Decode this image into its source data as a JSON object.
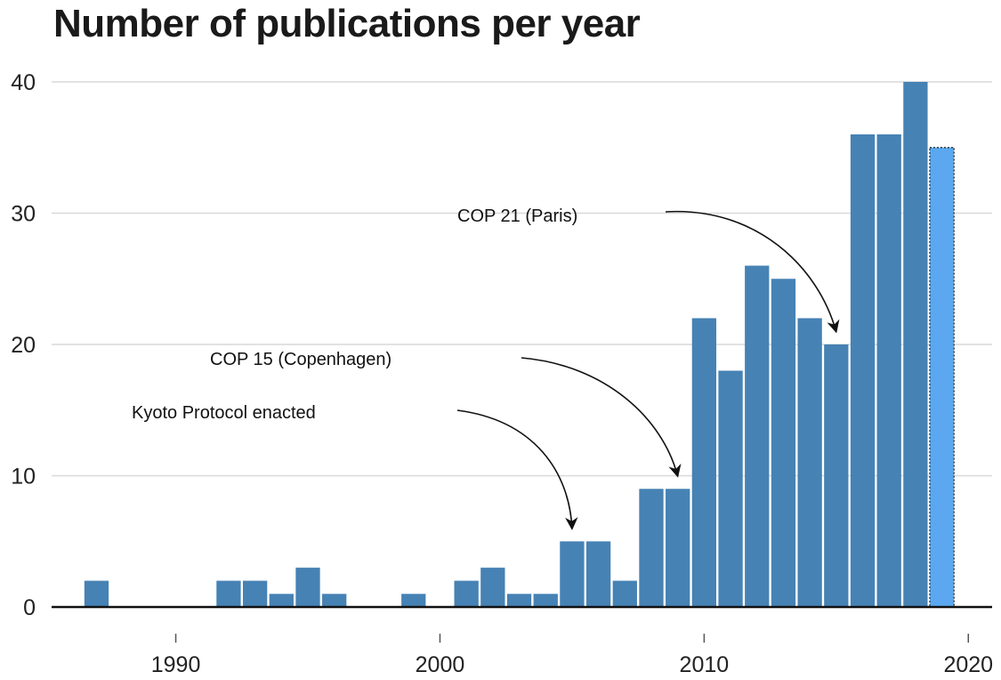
{
  "chart_data": {
    "type": "bar",
    "title": "Number of publications per year",
    "xlabel": "",
    "ylabel": "",
    "x": [
      1987,
      1988,
      1989,
      1990,
      1991,
      1992,
      1993,
      1994,
      1995,
      1996,
      1997,
      1998,
      1999,
      2000,
      2001,
      2002,
      2003,
      2004,
      2005,
      2006,
      2007,
      2008,
      2009,
      2010,
      2011,
      2012,
      2013,
      2014,
      2015,
      2016,
      2017,
      2018,
      2019
    ],
    "values": [
      2,
      0,
      0,
      0,
      0,
      2,
      2,
      1,
      3,
      1,
      0,
      0,
      1,
      0,
      2,
      3,
      1,
      1,
      5,
      5,
      2,
      9,
      9,
      22,
      18,
      26,
      25,
      22,
      20,
      36,
      36,
      40,
      35
    ],
    "partial_last_bar": true,
    "xlim": [
      1985.3,
      2020.9
    ],
    "ylim": [
      0,
      40
    ],
    "xticks": [
      1990,
      2000,
      2010,
      2020
    ],
    "yticks": [
      0,
      10,
      20,
      30,
      40
    ],
    "grid": "horizontal",
    "colors": {
      "bar": "#4682b4",
      "partial_bar": "#5ba8f0",
      "grid": "#d9d9d9",
      "baseline": "#111111"
    },
    "annotations": [
      {
        "text": "Kyoto Protocol enacted",
        "target_year": 2005,
        "target_value": 5
      },
      {
        "text": "COP 15 (Copenhagen)",
        "target_year": 2009,
        "target_value": 9
      },
      {
        "text": "COP 21 (Paris)",
        "target_year": 2015,
        "target_value": 20
      }
    ]
  }
}
